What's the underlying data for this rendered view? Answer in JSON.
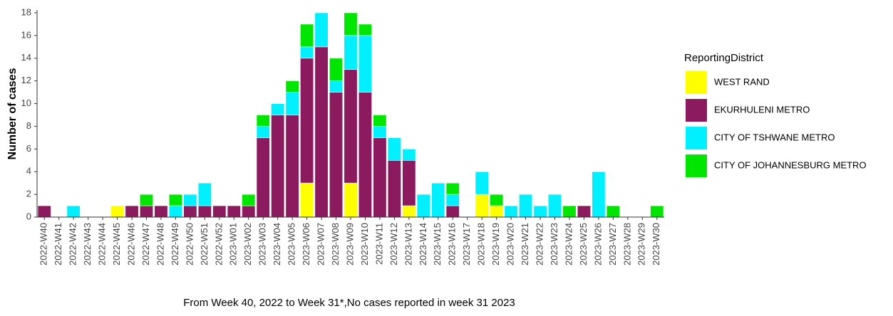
{
  "chart_data": {
    "type": "stacked_bar",
    "x_label": "From Week 40, 2022 to Week 31*,No cases reported in week 31 2023",
    "y_label": "Number of cases",
    "legend_title": "ReportingDistrict",
    "legend_position": "right",
    "categories": [
      "2022-W40",
      "2022-W41",
      "2022-W42",
      "2022-W43",
      "2022-W44",
      "2022-W45",
      "2022-W46",
      "2022-W47",
      "2022-W48",
      "2022-W49",
      "2022-W50",
      "2022-W51",
      "2022-W52",
      "2023-W01",
      "2023-W02",
      "2023-W03",
      "2023-W04",
      "2023-W05",
      "2023-W06",
      "2023-W07",
      "2023-W08",
      "2023-W09",
      "2023-W10",
      "2023-W11",
      "2023-W12",
      "2023-W13",
      "2023-W14",
      "2023-W15",
      "2023-W16",
      "2023-W17",
      "2023-W18",
      "2023-W19",
      "2023-W20",
      "2023-W21",
      "2023-W22",
      "2023-W23",
      "2023-W24",
      "2023-W25",
      "2023-W26",
      "2023-W27",
      "2023-W28",
      "2023-W29",
      "2023-W30"
    ],
    "series": [
      {
        "name": "WEST RAND",
        "color": "#ffff00",
        "values": [
          0,
          0,
          0,
          0,
          0,
          1,
          0,
          0,
          0,
          0,
          0,
          0,
          0,
          0,
          0,
          0,
          0,
          0,
          3,
          0,
          0,
          3,
          0,
          0,
          0,
          1,
          0,
          0,
          0,
          0,
          2,
          1,
          0,
          0,
          0,
          0,
          0,
          0,
          0,
          0,
          0,
          0,
          0
        ]
      },
      {
        "name": "EKURHULENI METRO",
        "color": "#8b1a5e",
        "values": [
          1,
          0,
          0,
          0,
          0,
          0,
          1,
          1,
          1,
          0,
          1,
          1,
          1,
          1,
          1,
          7,
          9,
          9,
          11,
          15,
          11,
          10,
          11,
          7,
          5,
          4,
          0,
          0,
          1,
          0,
          0,
          0,
          0,
          0,
          0,
          0,
          0,
          1,
          0,
          0,
          0,
          0,
          0
        ]
      },
      {
        "name": "CITY OF TSHWANE METRO",
        "color": "#00f0ff",
        "values": [
          0,
          0,
          1,
          0,
          0,
          0,
          0,
          0,
          0,
          1,
          1,
          2,
          0,
          0,
          0,
          1,
          1,
          2,
          1,
          3,
          1,
          3,
          5,
          1,
          2,
          1,
          2,
          3,
          1,
          0,
          2,
          0,
          1,
          2,
          1,
          2,
          0,
          0,
          4,
          0,
          0,
          0,
          0
        ]
      },
      {
        "name": "CITY OF JOHANNESBURG METRO",
        "color": "#00e600",
        "values": [
          0,
          0,
          0,
          0,
          0,
          0,
          0,
          1,
          0,
          1,
          0,
          0,
          0,
          0,
          1,
          1,
          0,
          1,
          2,
          0,
          2,
          2,
          1,
          1,
          0,
          0,
          0,
          0,
          1,
          0,
          0,
          1,
          0,
          0,
          0,
          0,
          1,
          0,
          0,
          1,
          0,
          0,
          1
        ]
      }
    ],
    "ylim": [
      0,
      18
    ],
    "yticks": [
      0,
      2,
      4,
      6,
      8,
      10,
      12,
      14,
      16,
      18
    ],
    "grid": false
  }
}
